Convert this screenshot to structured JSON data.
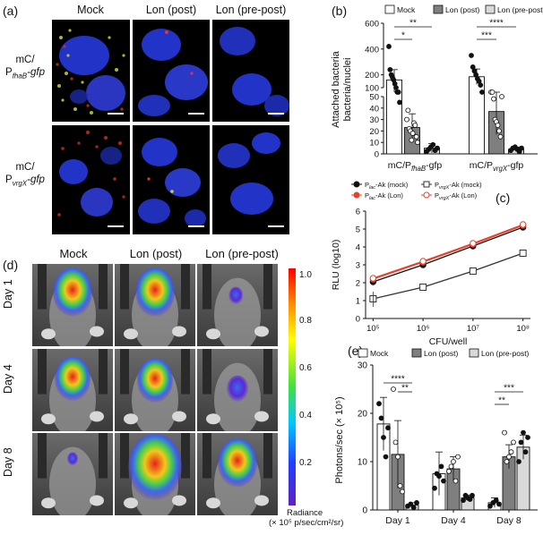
{
  "panels": {
    "a": {
      "letter": "(a)",
      "columns": [
        "Mock",
        "Lon (post)",
        "Lon (pre-post)"
      ],
      "rows": [
        {
          "line1": "mC/",
          "line2_prefix": "P",
          "line2_sub": "fhaB",
          "line2_suffix": "-gfp"
        },
        {
          "line1": "mC/",
          "line2_prefix": "P",
          "line2_sub": "vrgX",
          "line2_suffix": "-gfp"
        }
      ]
    },
    "b": {
      "letter": "(b)"
    },
    "c": {
      "letter": "(c)"
    },
    "d": {
      "letter": "(d)",
      "columns": [
        "Mock",
        "Lon (post)",
        "Lon (pre-post)"
      ],
      "rows": [
        "Day 1",
        "Day 4",
        "Day 8"
      ],
      "colorbar": {
        "ticks": [
          "1.0",
          "0.8",
          "0.6",
          "0.4",
          "0.2"
        ],
        "label_line1": "Radiance",
        "label_line2": "(× 10⁵ p/sec/cm²/sr)"
      }
    },
    "e": {
      "letter": "(e)"
    }
  },
  "chart_data": [
    {
      "id": "b",
      "type": "bar",
      "ylabel": "Attached bacteria/nuclei",
      "categories": [
        "mC/PfhaB-gfp",
        "mC/PvrgX-gfp"
      ],
      "category_labels": [
        {
          "prefix": "mC/P",
          "sub": "fhaB",
          "suffix": "-gfp"
        },
        {
          "prefix": "mC/P",
          "sub": "vrgX",
          "suffix": "-gfp"
        }
      ],
      "legend": [
        "Mock",
        "Lon (post)",
        "Lon (pre-post)"
      ],
      "legend_position": "top",
      "series": [
        {
          "name": "Mock",
          "color": "#ffffff",
          "marker": "filled-circle",
          "values": [
            160,
            185
          ],
          "errors": [
            80,
            60
          ]
        },
        {
          "name": "Lon (post)",
          "color": "#7f7f7f",
          "marker": "open-circle",
          "values": [
            23,
            37
          ],
          "errors": [
            12,
            20
          ]
        },
        {
          "name": "Lon (pre-post)",
          "color": "#d9d9d9",
          "marker": "filled-circle",
          "values": [
            5,
            4
          ],
          "errors": [
            4,
            2
          ]
        }
      ],
      "points": [
        [
          [
            420,
            240,
            200,
            180,
            160,
            130,
            100,
            80,
            60,
            45
          ],
          [
            30,
            38,
            22,
            20,
            12,
            18,
            27,
            25,
            15,
            10
          ],
          [
            2,
            4,
            6,
            8,
            3,
            5
          ]
        ],
        [
          [
            350,
            260,
            230,
            200,
            170,
            150,
            120,
            90
          ],
          [
            55,
            58,
            48,
            30,
            28,
            25,
            20,
            15,
            50
          ],
          [
            3,
            5,
            6,
            4,
            2,
            5
          ]
        ]
      ],
      "ylim_lower": [
        0,
        50
      ],
      "yticks_lower": [
        "0",
        "10",
        "20",
        "30",
        "40",
        "50"
      ],
      "ylim_upper": [
        100,
        600
      ],
      "yticks_upper": [
        "100",
        "200",
        "400",
        "600"
      ],
      "significance": [
        {
          "group": 0,
          "from": "Mock",
          "to": "Lon (post)",
          "label": "*"
        },
        {
          "group": 0,
          "from": "Mock",
          "to": "Lon (pre-post)",
          "label": "**"
        },
        {
          "group": 1,
          "from": "Mock",
          "to": "Lon (post)",
          "label": "***"
        },
        {
          "group": 1,
          "from": "Mock",
          "to": "Lon (pre-post)",
          "label": "****"
        }
      ]
    },
    {
      "id": "c",
      "type": "line",
      "xlabel": "CFU/well",
      "ylabel": "RLU (log10)",
      "x_scale": "log",
      "x": [
        100000,
        1000000,
        10000000,
        100000000
      ],
      "xticks": [
        "10⁵",
        "10⁶",
        "10⁷",
        "10⁸"
      ],
      "ylim": [
        0,
        6
      ],
      "yticks": [
        "0",
        "1",
        "2",
        "3",
        "4",
        "5",
        "6"
      ],
      "legend_position": "top",
      "series": [
        {
          "name": "Plac-Ak (mock)",
          "name_prefix": "P",
          "name_sub": "lac",
          "name_suffix": "-Ak (mock)",
          "color": "#111111",
          "marker": "filled-circle",
          "values": [
            2.05,
            3.0,
            4.05,
            5.1
          ]
        },
        {
          "name": "Plac-Ak (Lon)",
          "name_prefix": "P",
          "name_sub": "lac",
          "name_suffix": "-Ak (Lon)",
          "color": "#e8412c",
          "marker": "filled-circle",
          "values": [
            2.2,
            3.15,
            4.15,
            5.2
          ]
        },
        {
          "name": "PvrgX-Ak (mock)",
          "name_prefix": "P",
          "name_sub": "vrgX",
          "name_suffix": "-Ak (mock)",
          "color": "#333333",
          "marker": "open-square",
          "values": [
            1.1,
            1.75,
            2.65,
            3.65
          ]
        },
        {
          "name": "PvrgX-Ak (Lon)",
          "name_prefix": "P",
          "name_sub": "vrgX",
          "name_suffix": "-Ak (Lon)",
          "color": "#e8412c",
          "marker": "open-circle",
          "values": [
            2.25,
            3.2,
            4.2,
            5.25
          ]
        }
      ]
    },
    {
      "id": "e",
      "type": "bar",
      "ylabel": "Photons/sec (× 10⁵)",
      "categories": [
        "Day 1",
        "Day 4",
        "Day 8"
      ],
      "legend": [
        "Mock",
        "Lon (post)",
        "Lon (pre-post)"
      ],
      "legend_position": "top",
      "ylim": [
        0,
        30
      ],
      "yticks": [
        "0",
        "10",
        "20",
        "30"
      ],
      "series": [
        {
          "name": "Mock",
          "color": "#ffffff",
          "marker": "filled-circle",
          "values": [
            17.8,
            7.5,
            1.5
          ],
          "errors": [
            5.5,
            4.5,
            1.0
          ]
        },
        {
          "name": "Lon (post)",
          "color": "#7f7f7f",
          "marker": "open-circle",
          "values": [
            11.5,
            8.5,
            11.0
          ],
          "errors": [
            7.0,
            2.5,
            2.5
          ]
        },
        {
          "name": "Lon (pre-post)",
          "color": "#d9d9d9",
          "marker": "filled-circle",
          "values": [
            1.0,
            2.5,
            13.0
          ],
          "errors": [
            0.5,
            0.6,
            2.5
          ]
        }
      ],
      "points": [
        [
          [
            22,
            19,
            15,
            11,
            17
          ],
          [
            25,
            14,
            11,
            5,
            3.8
          ],
          [
            0.8,
            1.2,
            0.5,
            1.5
          ]
        ],
        [
          [
            4.5,
            7.5,
            7,
            9,
            6
          ],
          [
            8,
            9,
            10,
            6,
            11
          ],
          [
            2,
            3,
            2.5,
            2.2,
            3
          ]
        ],
        [
          [
            0.8,
            1.5,
            2,
            1.2
          ],
          [
            16,
            10,
            11,
            12,
            14
          ],
          [
            10,
            14,
            16,
            12,
            15
          ]
        ]
      ],
      "significance": [
        {
          "group": 0,
          "from": "Mock",
          "to": "Lon (pre-post)",
          "label": "****"
        },
        {
          "group": 0,
          "from": "Lon (post)",
          "to": "Lon (pre-post)",
          "label": "**"
        },
        {
          "group": 2,
          "from": "Mock",
          "to": "Lon (post)",
          "label": "**"
        },
        {
          "group": 2,
          "from": "Mock",
          "to": "Lon (pre-post)",
          "label": "***"
        }
      ]
    }
  ]
}
